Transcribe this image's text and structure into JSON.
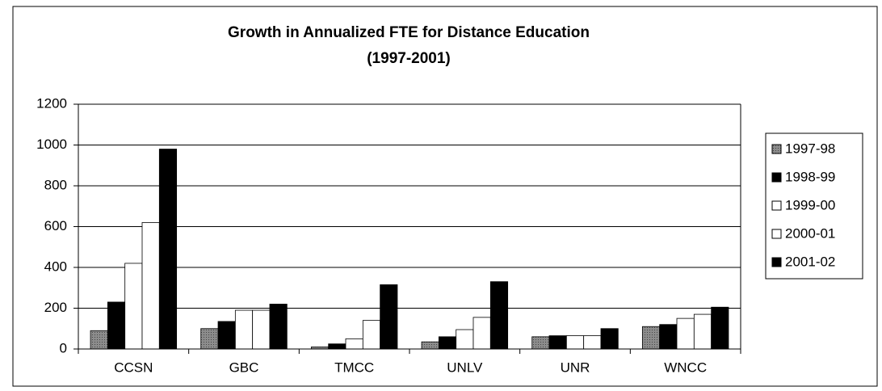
{
  "chart_data": {
    "type": "bar",
    "title": "Growth in Annualized FTE for Distance Education",
    "subtitle": "(1997-2001)",
    "categories": [
      "CCSN",
      "GBC",
      "TMCC",
      "UNLV",
      "UNR",
      "WNCC"
    ],
    "series": [
      {
        "name": "1997-98",
        "color": "#8c8c8c",
        "values": [
          90,
          100,
          10,
          35,
          60,
          110
        ]
      },
      {
        "name": "1998-99",
        "color": "#000000",
        "values": [
          230,
          135,
          25,
          60,
          65,
          120
        ]
      },
      {
        "name": "1999-00",
        "color": "#ffffff",
        "values": [
          420,
          190,
          50,
          95,
          65,
          150
        ]
      },
      {
        "name": "2000-01",
        "color": "#ffffff",
        "values": [
          620,
          190,
          140,
          155,
          65,
          170
        ]
      },
      {
        "name": "2001-02",
        "color": "#000000",
        "values": [
          980,
          220,
          315,
          330,
          100,
          205
        ]
      }
    ],
    "ylim": [
      0,
      1200
    ],
    "yticks": [
      0,
      200,
      400,
      600,
      800,
      1000,
      1200
    ],
    "grid": true,
    "legend": "right"
  }
}
